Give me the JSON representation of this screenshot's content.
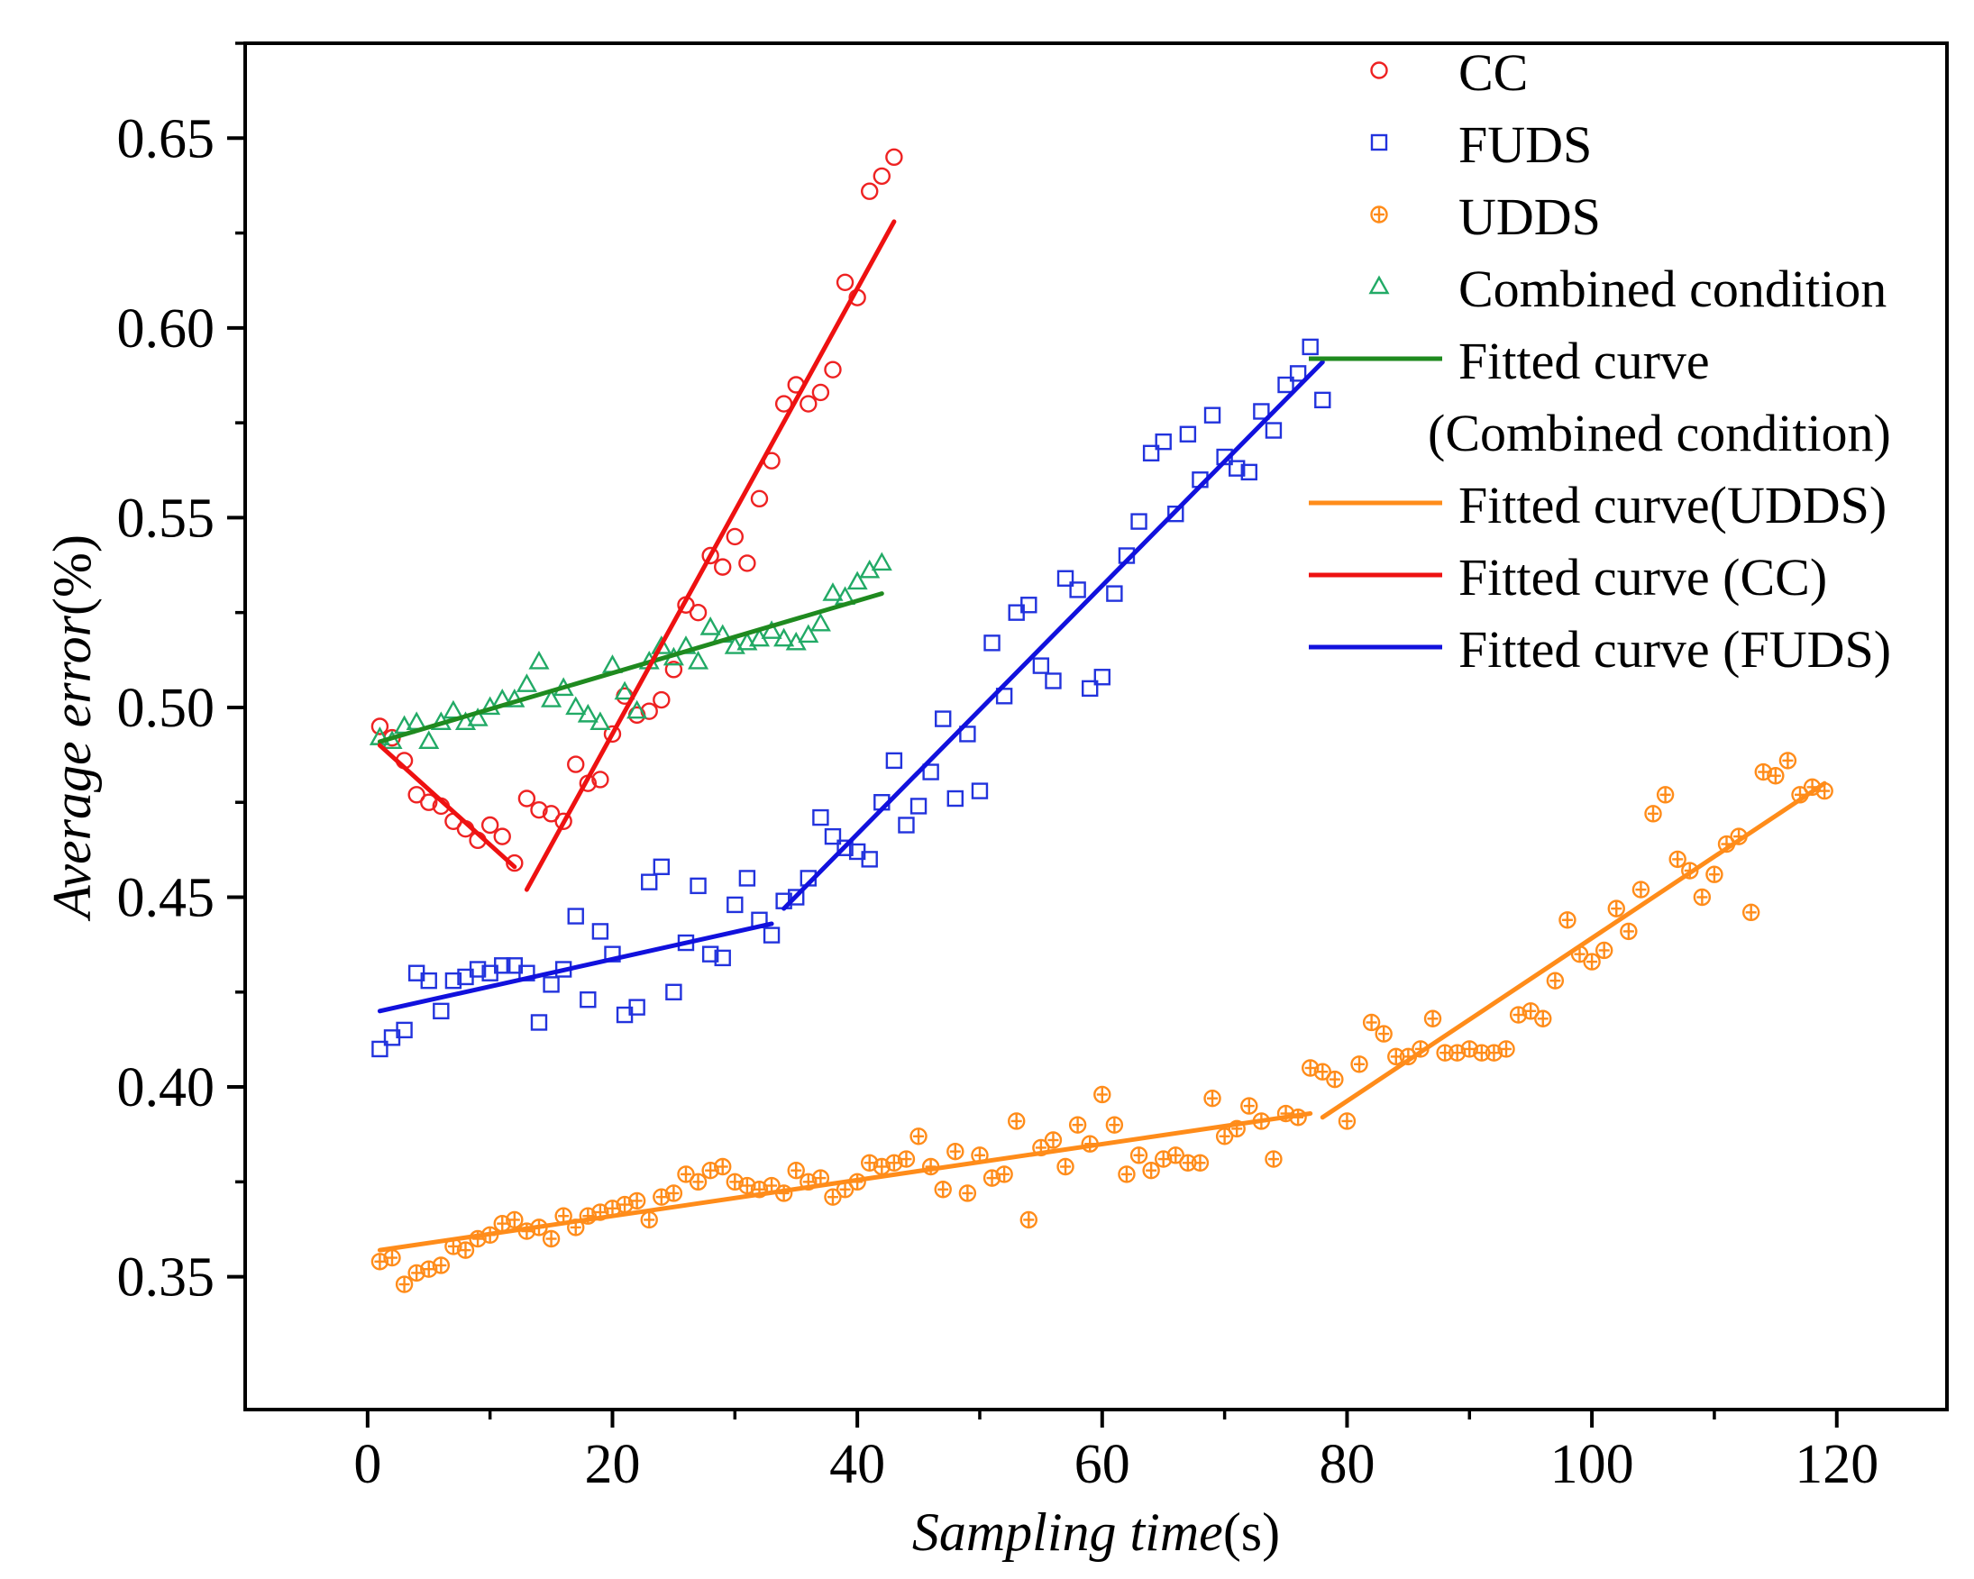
{
  "chart_data": {
    "type": "scatter",
    "title": "",
    "xlabel": {
      "italic": "Sampling time",
      "unit": "(s)"
    },
    "ylabel": {
      "italic": "Average error",
      "unit": "(%)"
    },
    "xlim": [
      -10,
      129
    ],
    "ylim": [
      0.315,
      0.675
    ],
    "xticks": [
      {
        "value": 0,
        "label": "0"
      },
      {
        "value": 20,
        "label": "20"
      },
      {
        "value": 40,
        "label": "40"
      },
      {
        "value": 60,
        "label": "60"
      },
      {
        "value": 80,
        "label": "80"
      },
      {
        "value": 100,
        "label": "100"
      },
      {
        "value": 120,
        "label": "120"
      }
    ],
    "yticks": [
      {
        "value": 0.35,
        "label": "0.35"
      },
      {
        "value": 0.4,
        "label": "0.40"
      },
      {
        "value": 0.45,
        "label": "0.45"
      },
      {
        "value": 0.5,
        "label": "0.50"
      },
      {
        "value": 0.55,
        "label": "0.55"
      },
      {
        "value": 0.6,
        "label": "0.60"
      },
      {
        "value": 0.65,
        "label": "0.65"
      }
    ],
    "series": [
      {
        "name": "CC",
        "marker": "circle",
        "color": "#ee2222",
        "x": [
          1,
          2,
          3,
          4,
          5,
          6,
          7,
          8,
          9,
          10,
          11,
          12,
          13,
          14,
          15,
          16,
          17,
          18,
          19,
          20,
          21,
          22,
          23,
          24,
          25,
          26,
          27,
          28,
          29,
          30,
          31,
          32,
          33,
          34,
          35,
          36,
          37,
          38,
          39,
          40,
          41,
          42,
          43
        ],
        "y": [
          0.495,
          0.492,
          0.486,
          0.477,
          0.475,
          0.474,
          0.47,
          0.468,
          0.465,
          0.469,
          0.466,
          0.459,
          0.476,
          0.473,
          0.472,
          0.47,
          0.485,
          0.48,
          0.481,
          0.493,
          0.503,
          0.498,
          0.499,
          0.502,
          0.51,
          0.527,
          0.525,
          0.54,
          0.537,
          0.545,
          0.538,
          0.555,
          0.565,
          0.58,
          0.585,
          0.58,
          0.583,
          0.589,
          0.612,
          0.608,
          0.636,
          0.64,
          0.645
        ]
      },
      {
        "name": "FUDS",
        "marker": "square",
        "color": "#2233dd",
        "x": [
          1,
          2,
          3,
          4,
          5,
          6,
          7,
          8,
          9,
          10,
          11,
          12,
          13,
          14,
          15,
          16,
          17,
          18,
          19,
          20,
          21,
          22,
          23,
          24,
          25,
          26,
          27,
          28,
          29,
          30,
          31,
          32,
          33,
          34,
          35,
          36,
          37,
          38,
          39,
          40,
          41,
          42,
          43,
          44,
          45,
          46,
          47,
          48,
          49,
          50,
          51,
          52,
          53,
          54,
          55,
          56,
          57,
          58,
          59,
          60,
          61,
          62,
          63,
          64,
          65,
          66,
          67,
          68,
          69,
          70,
          71,
          72,
          73,
          74,
          75,
          76,
          77,
          78
        ],
        "y": [
          0.41,
          0.413,
          0.415,
          0.43,
          0.428,
          0.42,
          0.428,
          0.429,
          0.431,
          0.43,
          0.432,
          0.432,
          0.43,
          0.417,
          0.427,
          0.431,
          0.445,
          0.423,
          0.441,
          0.435,
          0.419,
          0.421,
          0.454,
          0.458,
          0.425,
          0.438,
          0.453,
          0.435,
          0.434,
          0.448,
          0.455,
          0.444,
          0.44,
          0.449,
          0.45,
          0.455,
          0.471,
          0.466,
          0.463,
          0.462,
          0.46,
          0.475,
          0.486,
          0.469,
          0.474,
          0.483,
          0.497,
          0.476,
          0.493,
          0.478,
          0.517,
          0.503,
          0.525,
          0.527,
          0.511,
          0.507,
          0.534,
          0.531,
          0.505,
          0.508,
          0.53,
          0.54,
          0.549,
          0.567,
          0.57,
          0.551,
          0.572,
          0.56,
          0.577,
          0.566,
          0.563,
          0.562,
          0.578,
          0.573,
          0.585,
          0.588,
          0.595,
          0.581
        ]
      },
      {
        "name": "UDDS",
        "marker": "circle-cross",
        "color": "#ff8c1a",
        "x": [
          1,
          2,
          3,
          4,
          5,
          6,
          7,
          8,
          9,
          10,
          11,
          12,
          13,
          14,
          15,
          16,
          17,
          18,
          19,
          20,
          21,
          22,
          23,
          24,
          25,
          26,
          27,
          28,
          29,
          30,
          31,
          32,
          33,
          34,
          35,
          36,
          37,
          38,
          39,
          40,
          41,
          42,
          43,
          44,
          45,
          46,
          47,
          48,
          49,
          50,
          51,
          52,
          53,
          54,
          55,
          56,
          57,
          58,
          59,
          60,
          61,
          62,
          63,
          64,
          65,
          66,
          67,
          68,
          69,
          70,
          71,
          72,
          73,
          74,
          75,
          76,
          77,
          78,
          79,
          80,
          81,
          82,
          83,
          84,
          85,
          86,
          87,
          88,
          89,
          90,
          91,
          92,
          93,
          94,
          95,
          96,
          97,
          98,
          99,
          100,
          101,
          102,
          103,
          104,
          105,
          106,
          107,
          108,
          109,
          110,
          111,
          112,
          113,
          114,
          115,
          116,
          117,
          118,
          119
        ],
        "y": [
          0.354,
          0.355,
          0.348,
          0.351,
          0.352,
          0.353,
          0.358,
          0.357,
          0.36,
          0.361,
          0.364,
          0.365,
          0.362,
          0.363,
          0.36,
          0.366,
          0.363,
          0.366,
          0.367,
          0.368,
          0.369,
          0.37,
          0.365,
          0.371,
          0.372,
          0.377,
          0.375,
          0.378,
          0.379,
          0.375,
          0.374,
          0.373,
          0.374,
          0.372,
          0.378,
          0.375,
          0.376,
          0.371,
          0.373,
          0.375,
          0.38,
          0.379,
          0.38,
          0.381,
          0.387,
          0.379,
          0.373,
          0.383,
          0.372,
          0.382,
          0.376,
          0.377,
          0.391,
          0.365,
          0.384,
          0.386,
          0.379,
          0.39,
          0.385,
          0.398,
          0.39,
          0.377,
          0.382,
          0.378,
          0.381,
          0.382,
          0.38,
          0.38,
          0.397,
          0.387,
          0.389,
          0.395,
          0.391,
          0.381,
          0.393,
          0.392,
          0.405,
          0.404,
          0.402,
          0.391,
          0.406,
          0.417,
          0.414,
          0.408,
          0.408,
          0.41,
          0.418,
          0.409,
          0.409,
          0.41,
          0.409,
          0.409,
          0.41,
          0.419,
          0.42,
          0.418,
          0.428,
          0.444,
          0.435,
          0.433,
          0.436,
          0.447,
          0.441,
          0.452,
          0.472,
          0.477,
          0.46,
          0.457,
          0.45,
          0.456,
          0.464,
          0.466,
          0.446,
          0.483,
          0.482,
          0.486,
          0.477,
          0.479,
          0.478
        ]
      },
      {
        "name": "Combined condition",
        "marker": "triangle",
        "color": "#22aa66",
        "x": [
          1,
          2,
          3,
          4,
          5,
          6,
          7,
          8,
          9,
          10,
          11,
          12,
          13,
          14,
          15,
          16,
          17,
          18,
          19,
          20,
          21,
          22,
          23,
          24,
          25,
          26,
          27,
          28,
          29,
          30,
          31,
          32,
          33,
          34,
          35,
          36,
          37,
          38,
          39,
          40,
          41,
          42
        ],
        "y": [
          0.492,
          0.491,
          0.495,
          0.496,
          0.491,
          0.496,
          0.499,
          0.496,
          0.497,
          0.5,
          0.502,
          0.502,
          0.506,
          0.512,
          0.502,
          0.505,
          0.5,
          0.498,
          0.496,
          0.511,
          0.504,
          0.499,
          0.512,
          0.516,
          0.513,
          0.516,
          0.512,
          0.521,
          0.519,
          0.516,
          0.517,
          0.518,
          0.52,
          0.518,
          0.517,
          0.519,
          0.522,
          0.53,
          0.529,
          0.533,
          0.536,
          0.538
        ]
      }
    ],
    "fits": [
      {
        "name": "Fitted curve (Combined condition)",
        "color": "#1f8a1f",
        "segments": [
          [
            [
              1,
              0.491
            ],
            [
              42,
              0.53
            ]
          ]
        ]
      },
      {
        "name": "Fitted curve(UDDS)",
        "color": "#ff8c1a",
        "segments": [
          [
            [
              1,
              0.357
            ],
            [
              77,
              0.393
            ]
          ],
          [
            [
              78,
              0.392
            ],
            [
              119,
              0.48
            ]
          ]
        ]
      },
      {
        "name": "Fitted curve (CC)",
        "color": "#ee1111",
        "segments": [
          [
            [
              1,
              0.49
            ],
            [
              12,
              0.458
            ]
          ],
          [
            [
              13,
              0.452
            ],
            [
              43,
              0.628
            ]
          ]
        ]
      },
      {
        "name": "Fitted curve (FUDS)",
        "color": "#1111dd",
        "segments": [
          [
            [
              1,
              0.42
            ],
            [
              33,
              0.443
            ]
          ],
          [
            [
              34,
              0.447
            ],
            [
              78,
              0.591
            ]
          ]
        ]
      }
    ],
    "legend": {
      "position": "top-right",
      "entries": [
        {
          "label": "CC",
          "kind": "marker",
          "ref": "CC"
        },
        {
          "label": "FUDS",
          "kind": "marker",
          "ref": "FUDS"
        },
        {
          "label": "UDDS",
          "kind": "marker",
          "ref": "UDDS"
        },
        {
          "label": "Combined condition",
          "kind": "marker",
          "ref": "Combined condition"
        },
        {
          "label": "Fitted curve",
          "label2": "(Combined condition)",
          "kind": "line",
          "ref": "Fitted curve (Combined condition)"
        },
        {
          "label": "Fitted curve(UDDS)",
          "kind": "line",
          "ref": "Fitted curve(UDDS)"
        },
        {
          "label": "Fitted curve (CC)",
          "kind": "line",
          "ref": "Fitted curve (CC)"
        },
        {
          "label": "Fitted curve (FUDS)",
          "kind": "line",
          "ref": "Fitted curve (FUDS)"
        }
      ]
    }
  }
}
